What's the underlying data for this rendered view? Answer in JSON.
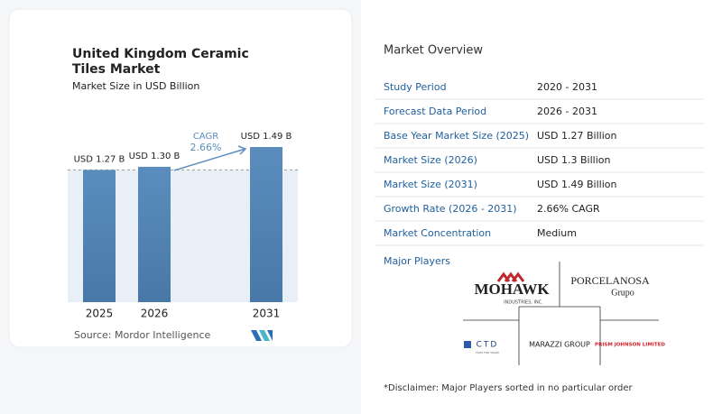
{
  "chart_data": {
    "type": "bar",
    "title": "United Kingdom Ceramic Tiles Market",
    "subtitle": "Market Size in USD Billion",
    "categories": [
      "2025",
      "2026",
      "2031"
    ],
    "values": [
      1.27,
      1.3,
      1.49
    ],
    "value_labels": [
      "USD 1.27 B",
      "USD 1.30 B",
      "USD 1.49 B"
    ],
    "color": "#5a8dbd",
    "annotations": [
      "CAGR",
      "2.66%"
    ],
    "source": "Source:  Mordor Intelligence"
  },
  "overview": {
    "title": "Market Overview",
    "rows": [
      [
        "Study Period",
        "2020 - 2031"
      ],
      [
        "Forecast Data Period",
        "2026 - 2031"
      ],
      [
        "Base Year Market Size (2025)",
        "USD 1.27 Billion"
      ],
      [
        "Market Size (2026)",
        "USD 1.3 Billion"
      ],
      [
        "Market Size (2031)",
        "USD 1.49 Billion"
      ],
      [
        "Growth Rate (2026 - 2031)",
        "2.66% CAGR"
      ],
      [
        "Market Concentration",
        "Medium"
      ]
    ],
    "players_title": "Major Players",
    "players": [
      {
        "name": "MOHAWK",
        "sub": "INDUSTRIES, INC."
      },
      {
        "name": "PORCELANOSA",
        "sub": "Grupo"
      },
      {
        "name": "CTD",
        "sub": "TILES FOR TRADE"
      },
      {
        "name": "MARAZZI GROUP"
      },
      {
        "name": "PRISM JOHNSON LIMITED"
      }
    ],
    "disclaimer": "*Disclaimer: Major Players sorted in no particular order"
  }
}
